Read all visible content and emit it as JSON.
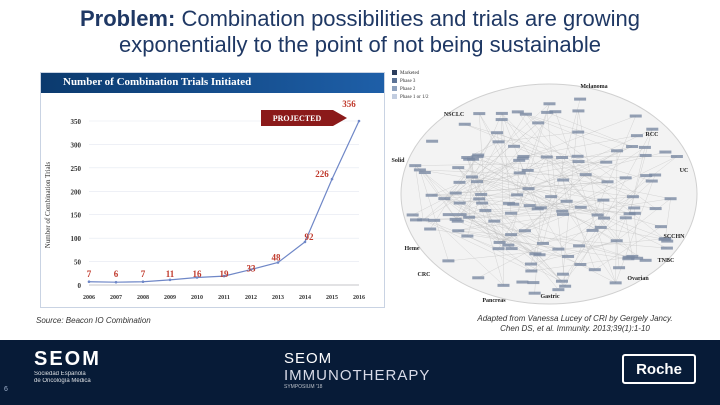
{
  "slide": {
    "title_bold": "Problem:",
    "title_rest_1": " Combination possibilities and trials are growing",
    "title_line_2": "exponentially to the point of not being sustainable",
    "page_number": "6"
  },
  "chart_panel": {
    "header": "Number of Combination Trials Initiated",
    "ylabel": "Number of Combination Trials",
    "projected_label": "PROJECTED"
  },
  "chart_data": {
    "type": "line",
    "x": [
      "2006",
      "2007",
      "2008",
      "2009",
      "2010",
      "2011",
      "2012",
      "2013",
      "2014",
      "2015",
      "2016"
    ],
    "values": [
      7,
      6,
      7,
      11,
      16,
      19,
      33,
      48,
      92,
      226,
      356
    ],
    "ylim": [
      0,
      350
    ],
    "yticks": [
      "0",
      "50",
      "100",
      "150",
      "200",
      "250",
      "300",
      "350"
    ],
    "data_labels": [
      "7",
      "6",
      "7",
      "11",
      "16",
      "19",
      "33",
      "48",
      "92",
      "226",
      "356"
    ],
    "colors": {
      "line": "#6f87c7",
      "labels": "#c0392b",
      "arrow": "#8b1a1a",
      "header": "#0b3a6e"
    }
  },
  "network": {
    "legend": [
      "Marketed",
      "Phase 3",
      "Phase 2",
      "Phase 1 or 1/2"
    ],
    "regions": [
      "NSCLC",
      "Melanoma",
      "RCC",
      "Solid",
      "UC",
      "SCCHN",
      "Heme",
      "TNBC",
      "CRC",
      "Ovarian",
      "Pancreas",
      "Gastric"
    ]
  },
  "notes": {
    "source": "Source: Beacon IO Combination",
    "adapted_1": "Adapted from Vanessa Lucey of CRI by Gergely Jancy.",
    "adapted_2": "Chen DS, et al. Immunity. 2013;39(1):1-10"
  },
  "footer": {
    "seom_name": "SEOM",
    "seom_sub_1": "Sociedad Española",
    "seom_sub_2": "de Oncología Médica",
    "event_line_1": "SEOM",
    "event_line_2": "IMMUNOTHERAPY",
    "event_line_3": "SYMPOSIUM '18",
    "brand": "Roche"
  }
}
